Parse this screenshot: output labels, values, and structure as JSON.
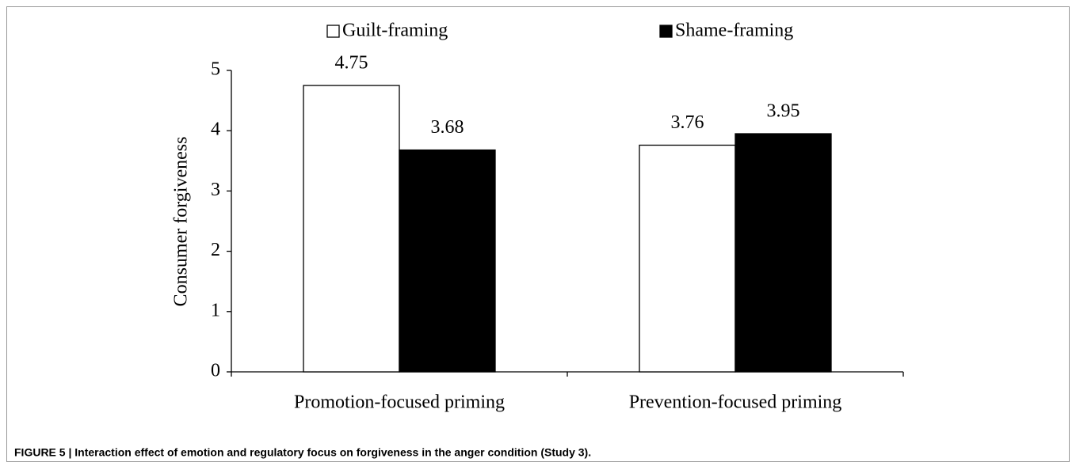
{
  "chart_data": {
    "type": "bar",
    "categories": [
      "Promotion-focused priming",
      "Prevention-focused priming"
    ],
    "series": [
      {
        "name": "Guilt-framing",
        "color": "#ffffff",
        "values": [
          4.75,
          3.76
        ]
      },
      {
        "name": "Shame-framing",
        "color": "#000000",
        "values": [
          3.68,
          3.95
        ]
      }
    ],
    "ylabel": "Consumer forgiveness",
    "ylim": [
      0,
      5
    ],
    "yticks": [
      0,
      1,
      2,
      3,
      4,
      5
    ],
    "legend": "top",
    "caption": "FIGURE 5 | Interaction effect of emotion and regulatory focus on forgiveness in the anger condition (Study 3)."
  }
}
